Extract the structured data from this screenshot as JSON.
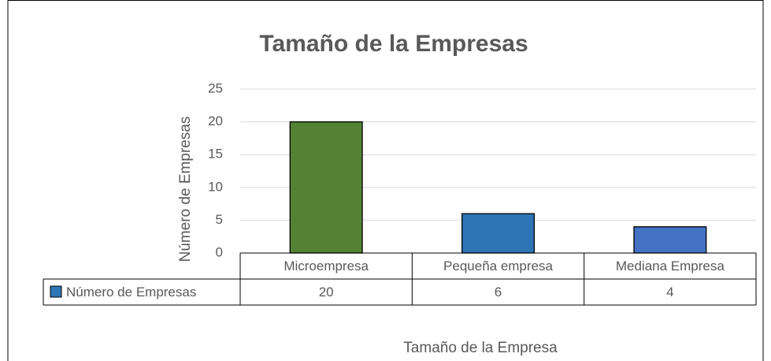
{
  "chart_data": {
    "type": "bar",
    "title": "Tamaño de la Empresas",
    "x_label": "Tamaño de la Empresa",
    "y_label": "Número de Empresas",
    "categories": [
      "Microempresa",
      "Pequeña empresa",
      "Mediana Empresa"
    ],
    "series": [
      {
        "name": "Número de Empresas",
        "color": "#2e75b6",
        "point_colors": [
          "#548235",
          "#2e75b6",
          "#4472c4"
        ],
        "values": [
          20,
          6,
          4
        ]
      }
    ],
    "ylim": [
      0,
      25
    ],
    "yticks": [
      0,
      5,
      10,
      15,
      20,
      25
    ],
    "grid": true,
    "data_table": true
  }
}
